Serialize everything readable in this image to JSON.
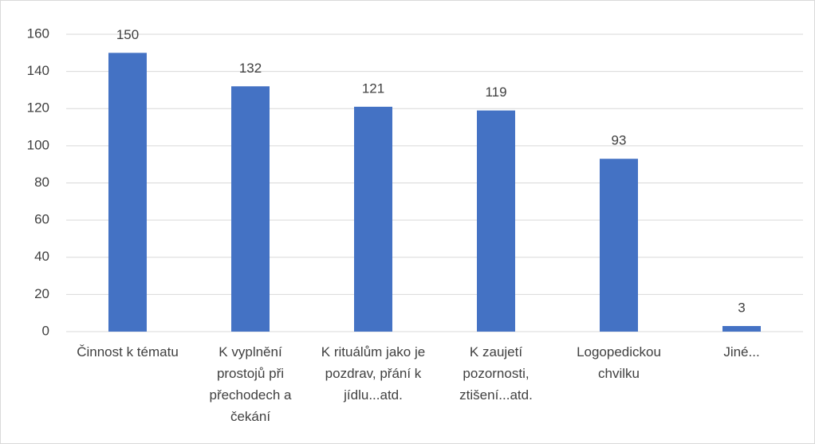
{
  "chart_data": {
    "type": "bar",
    "categories": [
      "Činnost k tématu",
      "K vyplnění prostojů při přechodech a čekání",
      "K rituálům jako je pozdrav, přání k jídlu...atd.",
      "K zaujetí pozornosti, ztišení...atd.",
      "Logopedickou chvilku",
      "Jiné..."
    ],
    "values": [
      150,
      132,
      121,
      119,
      93,
      3
    ],
    "color": "#4472c4",
    "ylim": [
      0,
      160
    ],
    "yticks": [
      0,
      20,
      40,
      60,
      80,
      100,
      120,
      140,
      160
    ],
    "grid": true
  }
}
